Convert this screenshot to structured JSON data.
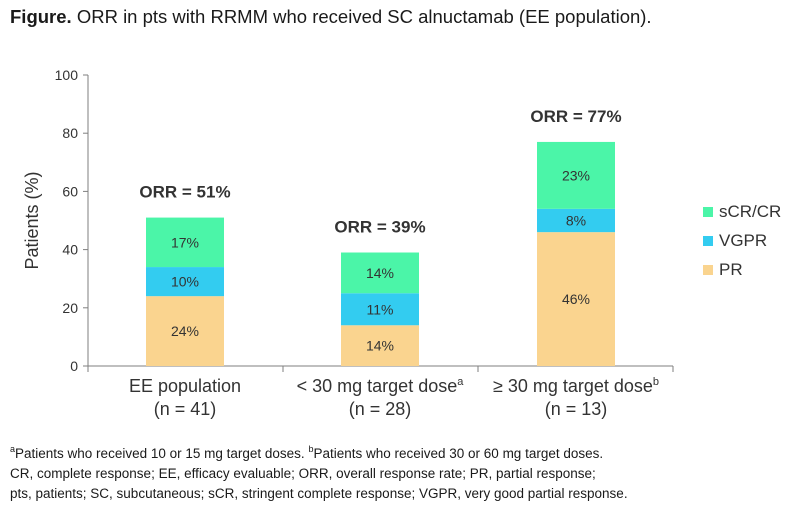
{
  "header": {
    "figure_label": "Figure.",
    "caption": "ORR in pts with RRMM who received SC alnuctamab (EE population)."
  },
  "chart_data": {
    "type": "bar",
    "stacked": true,
    "ylabel": "Patients (%)",
    "ylim": [
      0,
      100
    ],
    "yticks": [
      0,
      20,
      40,
      60,
      80,
      100
    ],
    "categories": [
      {
        "line1": "EE population",
        "sup": "",
        "line2": "(n = 41)",
        "orr_label": "ORR = 51%"
      },
      {
        "line1": "< 30 mg target dose",
        "sup": "a",
        "line2": "(n = 28)",
        "orr_label": "ORR = 39%"
      },
      {
        "line1": "≥ 30 mg target dose",
        "sup": "b",
        "line2": "(n = 13)",
        "orr_label": "ORR = 77%"
      }
    ],
    "series": [
      {
        "name": "PR",
        "color": "#FAD48F",
        "values": [
          24,
          14,
          46
        ],
        "labels": [
          "24%",
          "14%",
          "46%"
        ]
      },
      {
        "name": "VGPR",
        "color": "#33CCF0",
        "values": [
          10,
          11,
          8
        ],
        "labels": [
          "10%",
          "11%",
          "8%"
        ]
      },
      {
        "name": "sCR/CR",
        "color": "#4BF5A8",
        "values": [
          17,
          14,
          23
        ],
        "labels": [
          "17%",
          "14%",
          "23%"
        ]
      }
    ],
    "legend_order": [
      "sCR/CR",
      "VGPR",
      "PR"
    ],
    "legend_position": "right"
  },
  "footnotes": {
    "a_marker": "a",
    "a_text": "Patients who received 10 or 15 mg target doses. ",
    "b_marker": "b",
    "b_text": "Patients who received 30 or 60 mg target doses.",
    "line2": "CR, complete response; EE, efficacy evaluable; ORR, overall response rate; PR, partial response;",
    "line3": "pts, patients; SC, subcutaneous; sCR, stringent complete response; VGPR, very good partial response."
  }
}
